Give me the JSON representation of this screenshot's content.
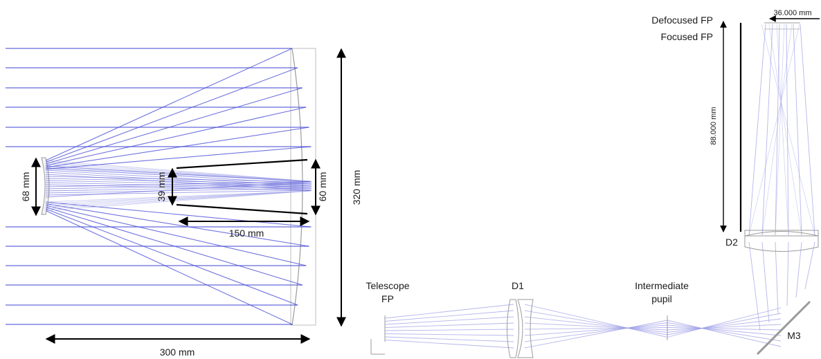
{
  "colors": {
    "ray": "#4a4fd6",
    "ray_light": "#9c9ee6",
    "mirror": "#9a9a9a",
    "frame": "#bdbdbd",
    "dimension": "#000000"
  },
  "left_panel": {
    "dim_68": "68 mm",
    "dim_39": "39 mm",
    "dim_60": "60 mm",
    "dim_150": "150 mm",
    "dim_300": "300 mm",
    "dim_320": "320 mm"
  },
  "right_panel": {
    "telescope_fp": [
      "Telescope",
      "FP"
    ],
    "d1": "D1",
    "intermediate_pupil": [
      "Intermediate",
      "pupil"
    ],
    "m3": "M3",
    "d2": "D2",
    "defocused_fp": "Defocused FP",
    "focused_fp": "Focused FP",
    "dim_36": "36.000 mm",
    "dim_88": "88.000 mm"
  }
}
